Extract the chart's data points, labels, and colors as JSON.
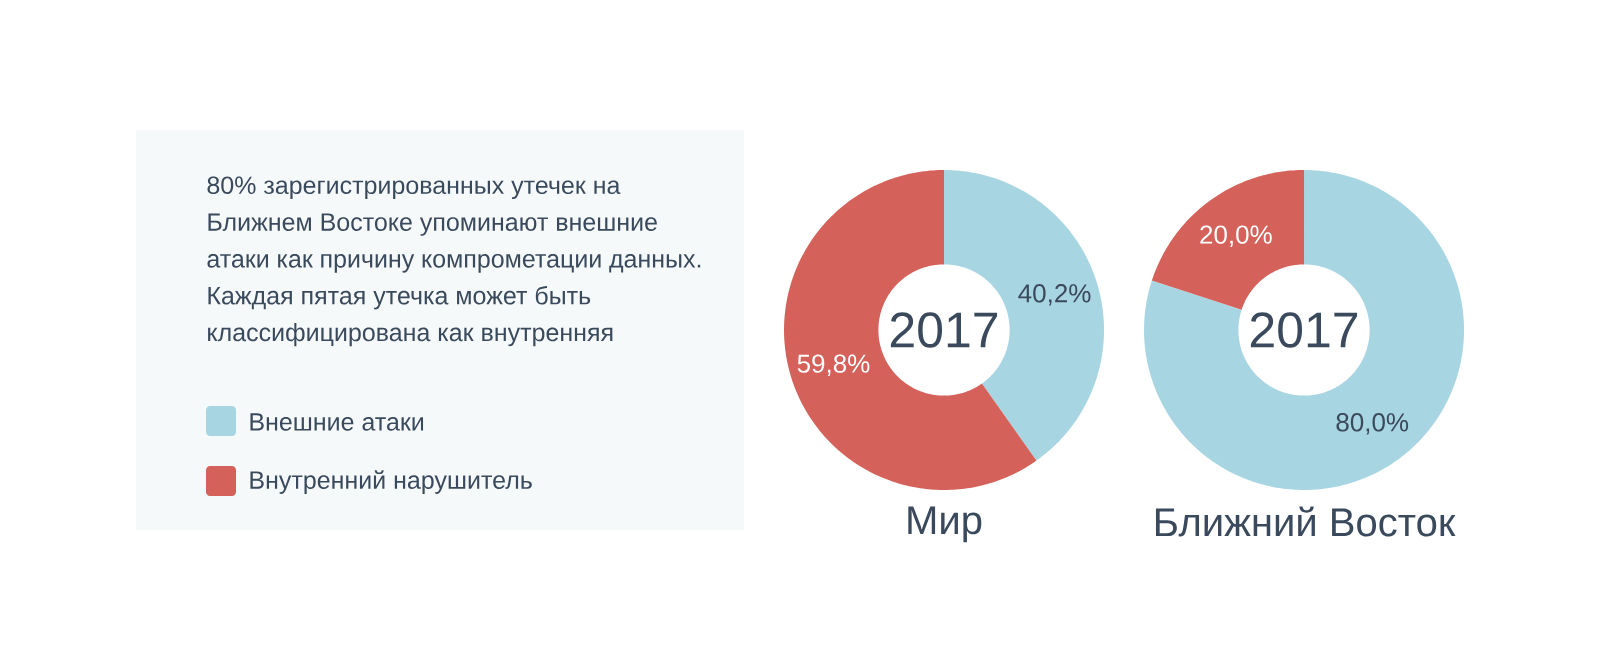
{
  "chart_data": [
    {
      "type": "donut",
      "title": "Мир",
      "subtitle": "2017",
      "categories": [
        "Внешние атаки",
        "Внутренний нарушитель"
      ],
      "values": [
        40.2,
        59.8
      ],
      "value_labels": [
        "40,2%",
        "59,8%"
      ],
      "colors": [
        "#a8d5e2",
        "#d4625a"
      ],
      "legend": "left",
      "annotations": [
        "80% зарегистрированных утечек на Ближнем Востоке упоминают внешние атаки как причину компрометации данных. Каждая пятая утечка может быть классифицирована как внутренняя"
      ]
    },
    {
      "type": "donut",
      "title": "Ближний Восток",
      "subtitle": "2017",
      "categories": [
        null,
        null
      ],
      "values": [
        80.0,
        20.0
      ],
      "value_labels": [
        "80,0%",
        "20,0%"
      ],
      "colors": [
        "#a8d5e2",
        "#d4625a"
      ]
    }
  ]
}
